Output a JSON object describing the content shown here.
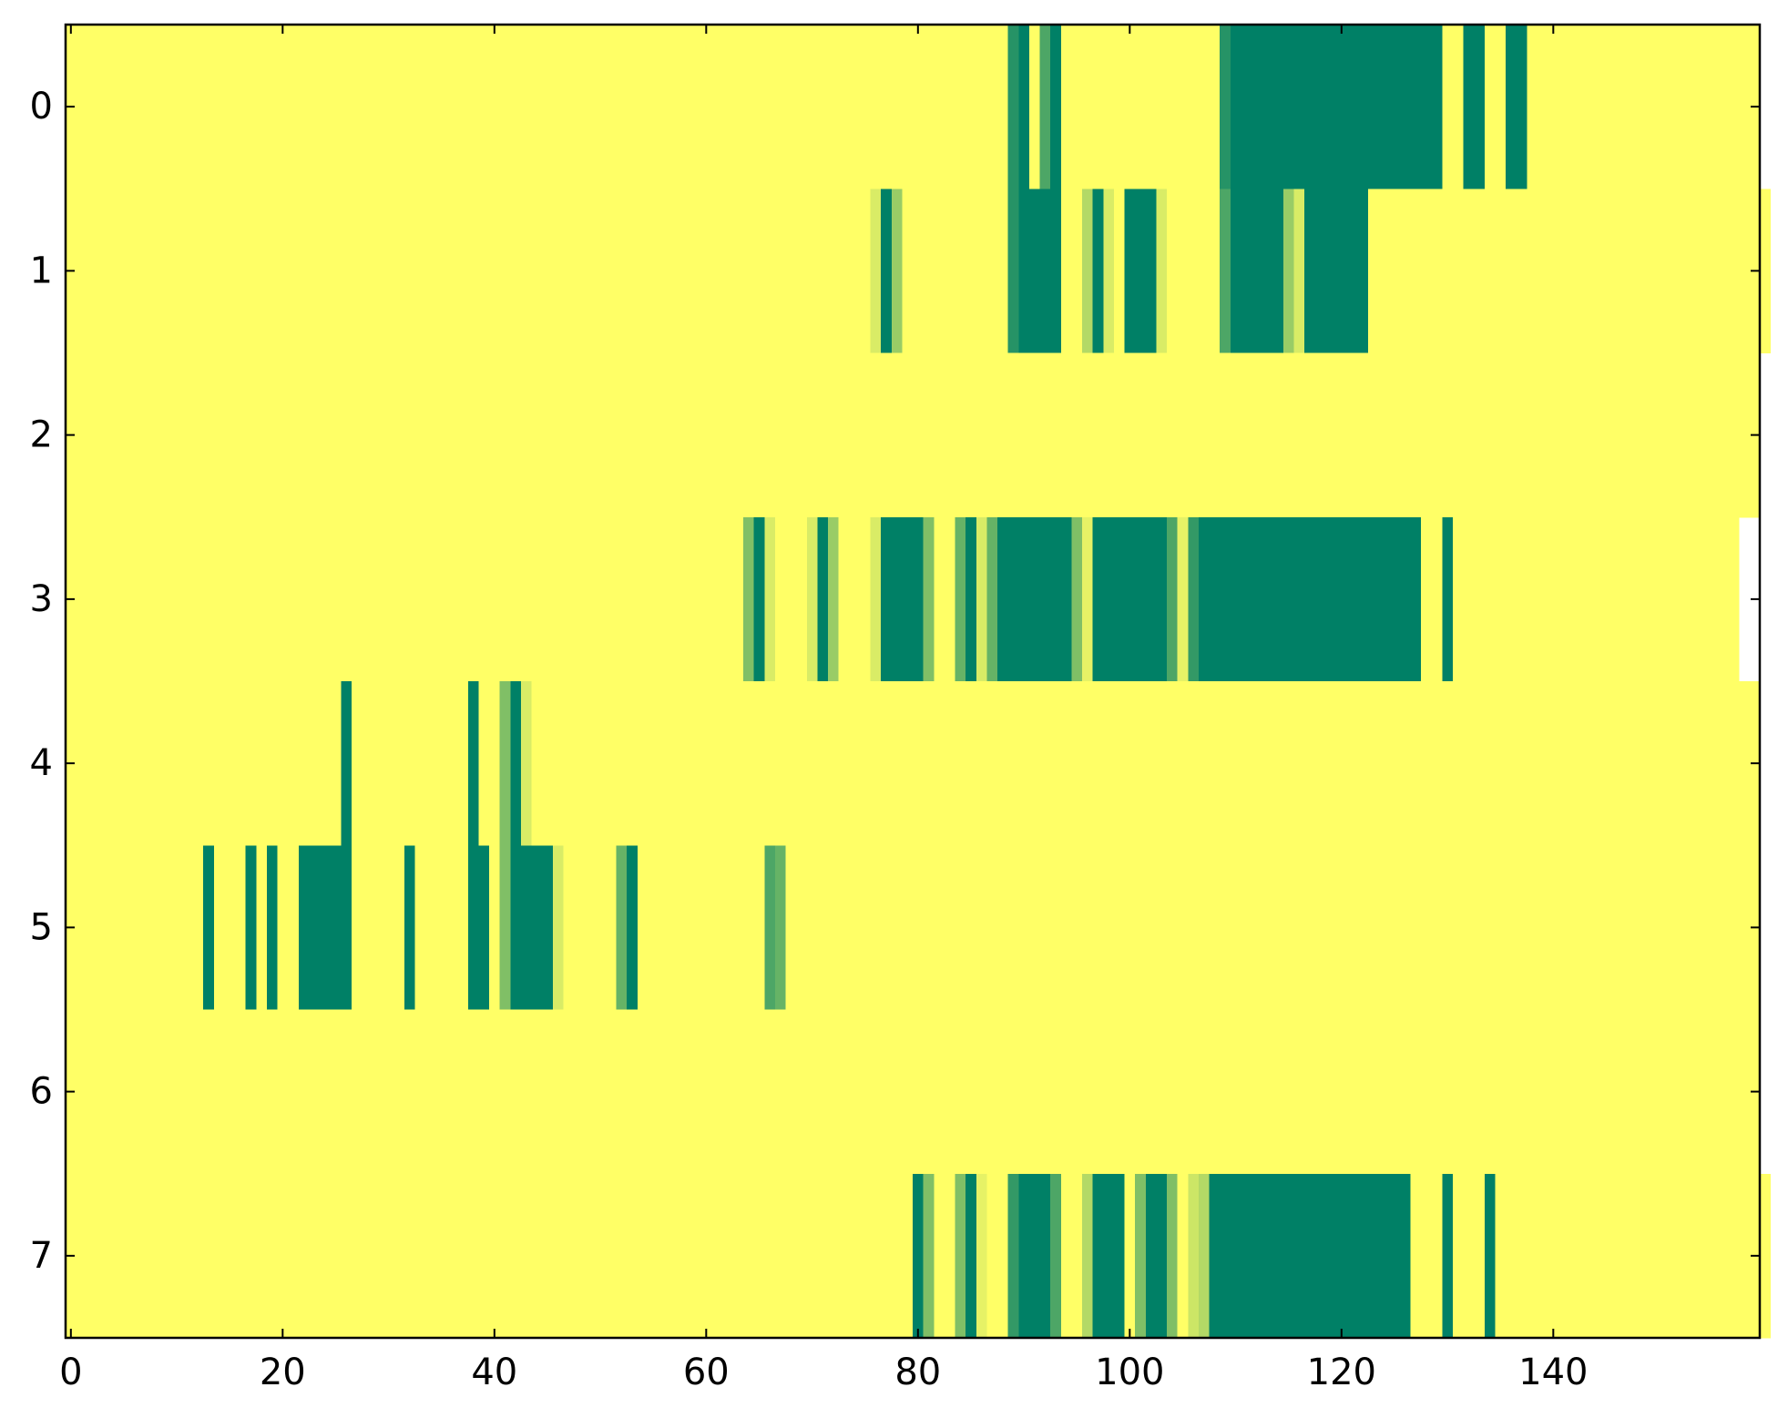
{
  "chart_data": {
    "type": "heatmap",
    "colormap": "summer",
    "xlim": [
      -0.5,
      159.5
    ],
    "ylim": [
      7.5,
      -0.5
    ],
    "xticks": [
      0,
      20,
      40,
      60,
      80,
      100,
      120,
      140
    ],
    "yticks": [
      0,
      1,
      2,
      3,
      4,
      5,
      6,
      7
    ],
    "values": [
      [
        1,
        1,
        1,
        1,
        1,
        1,
        1,
        1,
        1,
        1,
        1,
        1,
        1,
        1,
        1,
        1,
        1,
        1,
        1,
        1,
        1,
        1,
        1,
        1,
        1,
        1,
        1,
        1,
        1,
        1,
        1,
        1,
        1,
        1,
        1,
        1,
        1,
        1,
        1,
        1,
        1,
        1,
        1,
        1,
        1,
        1,
        1,
        1,
        1,
        1,
        1,
        1,
        1,
        1,
        1,
        1,
        1,
        1,
        1,
        1,
        1,
        1,
        1,
        1,
        1,
        1,
        1,
        1,
        1,
        1,
        1,
        1,
        1,
        1,
        1,
        1,
        1,
        1,
        1,
        1,
        1,
        1,
        1,
        1,
        1,
        1,
        1,
        1,
        1,
        0.15,
        0,
        1,
        0.3,
        0,
        1,
        1,
        1,
        1,
        1,
        1,
        1,
        1,
        1,
        1,
        1,
        1,
        1,
        1,
        1,
        0.15,
        0,
        0,
        0,
        0,
        0,
        0,
        0,
        0,
        0,
        0,
        0,
        0,
        0,
        0,
        0,
        0,
        0,
        0,
        0,
        0,
        1,
        1,
        0,
        0,
        1,
        1,
        0,
        0,
        1,
        1,
        1,
        1,
        1,
        1,
        1,
        1,
        1,
        1,
        1,
        1,
        1,
        1,
        1,
        1,
        1,
        1,
        1,
        1,
        1,
        1
      ],
      [
        1,
        1,
        1,
        1,
        1,
        1,
        1,
        1,
        1,
        1,
        1,
        1,
        1,
        1,
        1,
        1,
        1,
        1,
        1,
        1,
        1,
        1,
        1,
        1,
        1,
        1,
        1,
        1,
        1,
        1,
        1,
        1,
        1,
        1,
        1,
        1,
        1,
        1,
        1,
        1,
        1,
        1,
        1,
        1,
        1,
        1,
        1,
        1,
        1,
        1,
        1,
        1,
        1,
        1,
        1,
        1,
        1,
        1,
        1,
        1,
        1,
        1,
        1,
        1,
        1,
        1,
        1,
        1,
        1,
        1,
        1,
        1,
        1,
        1,
        1,
        1,
        0.85,
        0,
        0.6,
        1,
        1,
        1,
        1,
        1,
        1,
        1,
        1,
        1,
        1,
        0.15,
        0,
        0,
        0,
        0,
        1,
        1,
        0.7,
        0,
        0.85,
        1,
        0,
        0,
        0,
        0.85,
        1,
        1,
        1,
        1,
        1,
        0.3,
        0,
        0,
        0,
        0,
        0,
        0.6,
        0.85,
        0,
        0,
        0,
        0,
        0,
        0,
        1,
        1,
        1,
        1,
        1,
        1,
        1,
        1,
        1,
        1,
        1,
        1,
        1,
        1,
        1,
        1,
        1,
        1,
        1,
        1,
        1,
        1,
        1,
        1,
        1,
        1,
        1,
        1,
        1,
        1,
        1,
        1,
        1,
        1,
        1,
        1,
        1,
        1
      ],
      [
        1,
        1,
        1,
        1,
        1,
        1,
        1,
        1,
        1,
        1,
        1,
        1,
        1,
        1,
        1,
        1,
        1,
        1,
        1,
        1,
        1,
        1,
        1,
        1,
        1,
        1,
        1,
        1,
        1,
        1,
        1,
        1,
        1,
        1,
        1,
        1,
        1,
        1,
        1,
        1,
        1,
        1,
        1,
        1,
        1,
        1,
        1,
        1,
        1,
        1,
        1,
        1,
        1,
        1,
        1,
        1,
        1,
        1,
        1,
        1,
        1,
        1,
        1,
        1,
        1,
        1,
        1,
        1,
        1,
        1,
        1,
        1,
        1,
        1,
        1,
        1,
        1,
        1,
        1,
        1,
        1,
        1,
        1,
        1,
        1,
        1,
        1,
        1,
        1,
        1,
        1,
        1,
        1,
        1,
        1,
        1,
        1,
        1,
        1,
        1,
        1,
        1,
        1,
        1,
        1,
        1,
        1,
        1,
        1,
        1,
        1,
        1,
        1,
        1,
        1,
        1,
        1,
        1,
        1,
        1,
        1,
        1,
        1,
        1,
        1,
        1,
        1,
        1,
        1,
        1,
        1,
        1,
        1,
        1,
        1,
        1,
        1,
        1,
        1,
        1,
        1,
        1,
        1,
        1,
        1,
        1,
        1,
        1,
        1,
        1,
        1,
        1,
        1,
        1,
        1,
        1,
        1,
        1,
        1,
        1
      ],
      [
        1,
        1,
        1,
        1,
        1,
        1,
        1,
        1,
        1,
        1,
        1,
        1,
        1,
        1,
        1,
        1,
        1,
        1,
        1,
        1,
        1,
        1,
        1,
        1,
        1,
        1,
        1,
        1,
        1,
        1,
        1,
        1,
        1,
        1,
        1,
        1,
        1,
        1,
        1,
        1,
        1,
        1,
        1,
        1,
        1,
        1,
        1,
        1,
        1,
        1,
        1,
        1,
        1,
        1,
        1,
        1,
        1,
        1,
        1,
        1,
        1,
        1,
        1,
        1,
        0.5,
        0,
        0.85,
        1,
        1,
        1,
        0.85,
        0,
        0.6,
        1,
        1,
        1,
        0.85,
        0,
        0,
        0,
        0,
        0.5,
        1,
        1,
        0.4,
        0,
        0.85,
        0.4,
        0,
        0,
        0,
        0,
        0,
        0,
        0,
        0.5,
        0.9,
        0,
        0,
        0,
        0,
        0,
        0,
        0,
        0.3,
        0.9,
        0.2,
        0,
        0,
        0,
        0,
        0,
        0,
        0,
        0,
        0,
        0,
        0,
        0,
        0,
        0,
        0,
        0,
        0,
        0,
        0,
        0,
        0,
        1,
        1,
        0,
        1,
        1,
        1,
        1,
        1,
        1,
        1,
        1,
        1,
        1,
        1,
        1,
        1,
        1,
        1,
        1,
        1,
        1,
        1,
        1,
        1,
        1,
        1,
        1,
        1,
        1,
        1
      ],
      [
        1,
        1,
        1,
        1,
        1,
        1,
        1,
        1,
        1,
        1,
        1,
        1,
        1,
        1,
        1,
        1,
        1,
        1,
        1,
        1,
        1,
        1,
        1,
        1,
        1,
        1,
        0,
        1,
        1,
        1,
        1,
        1,
        1,
        1,
        1,
        1,
        1,
        1,
        0,
        1,
        1,
        0.5,
        0,
        0.85,
        1,
        1,
        1,
        1,
        1,
        1,
        1,
        1,
        1,
        1,
        1,
        1,
        1,
        1,
        1,
        1,
        1,
        1,
        1,
        1,
        1,
        1,
        1,
        1,
        1,
        1,
        1,
        1,
        1,
        1,
        1,
        1,
        1,
        1,
        1,
        1,
        1,
        1,
        1,
        1,
        1,
        1,
        1,
        1,
        1,
        1,
        1,
        1,
        1,
        1,
        1,
        1,
        1,
        1,
        1,
        1,
        1,
        1,
        1,
        1,
        1,
        1,
        1,
        1,
        1,
        1,
        1,
        1,
        1,
        1,
        1,
        1,
        1,
        1,
        1,
        1,
        1,
        1,
        1,
        1,
        1,
        1,
        1,
        1,
        1,
        1,
        1,
        1,
        1,
        1,
        1,
        1,
        1,
        1,
        1,
        1,
        1,
        1,
        1,
        1,
        1,
        1,
        1,
        1,
        1,
        1,
        1,
        1,
        1,
        1,
        1,
        1,
        1,
        1,
        1,
        1
      ],
      [
        1,
        1,
        1,
        1,
        1,
        1,
        1,
        1,
        1,
        1,
        1,
        1,
        1,
        0,
        1,
        1,
        1,
        0,
        1,
        0,
        1,
        1,
        0,
        0,
        0,
        0,
        0,
        1,
        1,
        1,
        1,
        1,
        0,
        1,
        1,
        1,
        1,
        1,
        0,
        0,
        1,
        0.5,
        0,
        0,
        0,
        0,
        0.85,
        1,
        1,
        1,
        1,
        1,
        0.4,
        0,
        1,
        1,
        1,
        1,
        1,
        1,
        1,
        1,
        1,
        1,
        1,
        1,
        0.3,
        0.4,
        1,
        1,
        1,
        1,
        1,
        1,
        1,
        1,
        1,
        1,
        1,
        1,
        1,
        1,
        1,
        1,
        1,
        1,
        1,
        1,
        1,
        1,
        1,
        1,
        1,
        1,
        1,
        1,
        1,
        1,
        1,
        1,
        1,
        1,
        1,
        1,
        1,
        1,
        1,
        1,
        1,
        1,
        1,
        1,
        1,
        1,
        1,
        1,
        1,
        1,
        1,
        1,
        1,
        1,
        1,
        1,
        1,
        1,
        1,
        1,
        1,
        1,
        1,
        1,
        1,
        1,
        1,
        1,
        1,
        1,
        1,
        1,
        1,
        1,
        1,
        1,
        1,
        1,
        1,
        1,
        1,
        1,
        1,
        1,
        1,
        1,
        1,
        1,
        1,
        1,
        1,
        1
      ],
      [
        1,
        1,
        1,
        1,
        1,
        1,
        1,
        1,
        1,
        1,
        1,
        1,
        1,
        1,
        1,
        1,
        1,
        1,
        1,
        1,
        1,
        1,
        1,
        1,
        1,
        1,
        1,
        1,
        1,
        1,
        1,
        1,
        1,
        1,
        1,
        1,
        1,
        1,
        1,
        1,
        1,
        1,
        1,
        1,
        1,
        1,
        1,
        1,
        1,
        1,
        1,
        1,
        1,
        1,
        1,
        1,
        1,
        1,
        1,
        1,
        1,
        1,
        1,
        1,
        1,
        1,
        1,
        1,
        1,
        1,
        1,
        1,
        1,
        1,
        1,
        1,
        1,
        1,
        1,
        1,
        1,
        1,
        1,
        1,
        1,
        1,
        1,
        1,
        1,
        1,
        1,
        1,
        1,
        1,
        1,
        1,
        1,
        1,
        1,
        1,
        1,
        1,
        1,
        1,
        1,
        1,
        1,
        1,
        1,
        1,
        1,
        1,
        1,
        1,
        1,
        1,
        1,
        1,
        1,
        1,
        1,
        1,
        1,
        1,
        1,
        1,
        1,
        1,
        1,
        1,
        1,
        1,
        1,
        1,
        1,
        1,
        1,
        1,
        1,
        1,
        1,
        1,
        1,
        1,
        1,
        1,
        1,
        1,
        1,
        1,
        1,
        1,
        1,
        1,
        1,
        1,
        1,
        1,
        1,
        1
      ],
      [
        1,
        1,
        1,
        1,
        1,
        1,
        1,
        1,
        1,
        1,
        1,
        1,
        1,
        1,
        1,
        1,
        1,
        1,
        1,
        1,
        1,
        1,
        1,
        1,
        1,
        1,
        1,
        1,
        1,
        1,
        1,
        1,
        1,
        1,
        1,
        1,
        1,
        1,
        1,
        1,
        1,
        1,
        1,
        1,
        1,
        1,
        1,
        1,
        1,
        1,
        1,
        1,
        1,
        1,
        1,
        1,
        1,
        1,
        1,
        1,
        1,
        1,
        1,
        1,
        1,
        1,
        1,
        1,
        1,
        1,
        1,
        1,
        1,
        1,
        1,
        1,
        1,
        1,
        1,
        1,
        0,
        0.5,
        1,
        1,
        0.5,
        0,
        0.9,
        1,
        1,
        0.2,
        0,
        0,
        0,
        0.3,
        1,
        1,
        0.7,
        0,
        0,
        0,
        1,
        0.5,
        0,
        0,
        0.5,
        1,
        0.8,
        0.7,
        0,
        0,
        0,
        0,
        0,
        0,
        0,
        0,
        0,
        0,
        0,
        0,
        0,
        0,
        0,
        0,
        0,
        0,
        0,
        1,
        1,
        1,
        0,
        1,
        1,
        1,
        0,
        1,
        1,
        1,
        1,
        1,
        1,
        1,
        1,
        1,
        1,
        1,
        1,
        1,
        1,
        1,
        1,
        1,
        1,
        1,
        1,
        1,
        1,
        1,
        1,
        1,
        1
      ]
    ]
  }
}
